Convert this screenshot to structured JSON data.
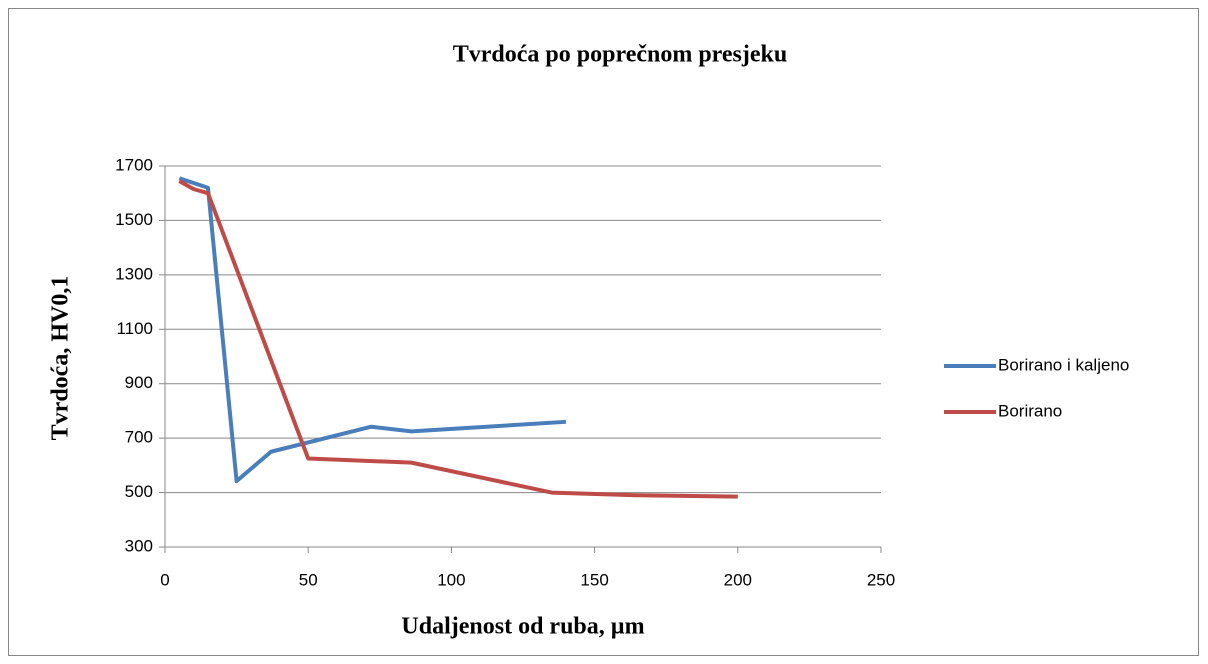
{
  "chart_data": {
    "type": "line",
    "title": "Tvrdoća po poprečnom presjeku",
    "x_label": "Udaljenost od ruba, µm",
    "y_label": "Tvrdoća, HV0,1",
    "xlim": [
      0,
      250
    ],
    "xticks": [
      0,
      50,
      100,
      150,
      200,
      250
    ],
    "ylim": [
      300,
      1700
    ],
    "yticks": [
      300,
      500,
      700,
      900,
      1100,
      1300,
      1500,
      1700
    ],
    "grid": true,
    "legend": "right",
    "series": [
      {
        "name": "Borirano i kaljeno",
        "color": "#4a7ebb",
        "x": [
          5,
          15,
          25,
          37,
          72,
          86,
          140
        ],
        "values": [
          1655,
          1620,
          542,
          650,
          742,
          725,
          760
        ]
      },
      {
        "name": "Borirano",
        "color": "#be4b48",
        "x": [
          5,
          10,
          15,
          50,
          86,
          135,
          165,
          200
        ],
        "values": [
          1645,
          1615,
          1600,
          625,
          610,
          500,
          490,
          485
        ]
      }
    ]
  }
}
